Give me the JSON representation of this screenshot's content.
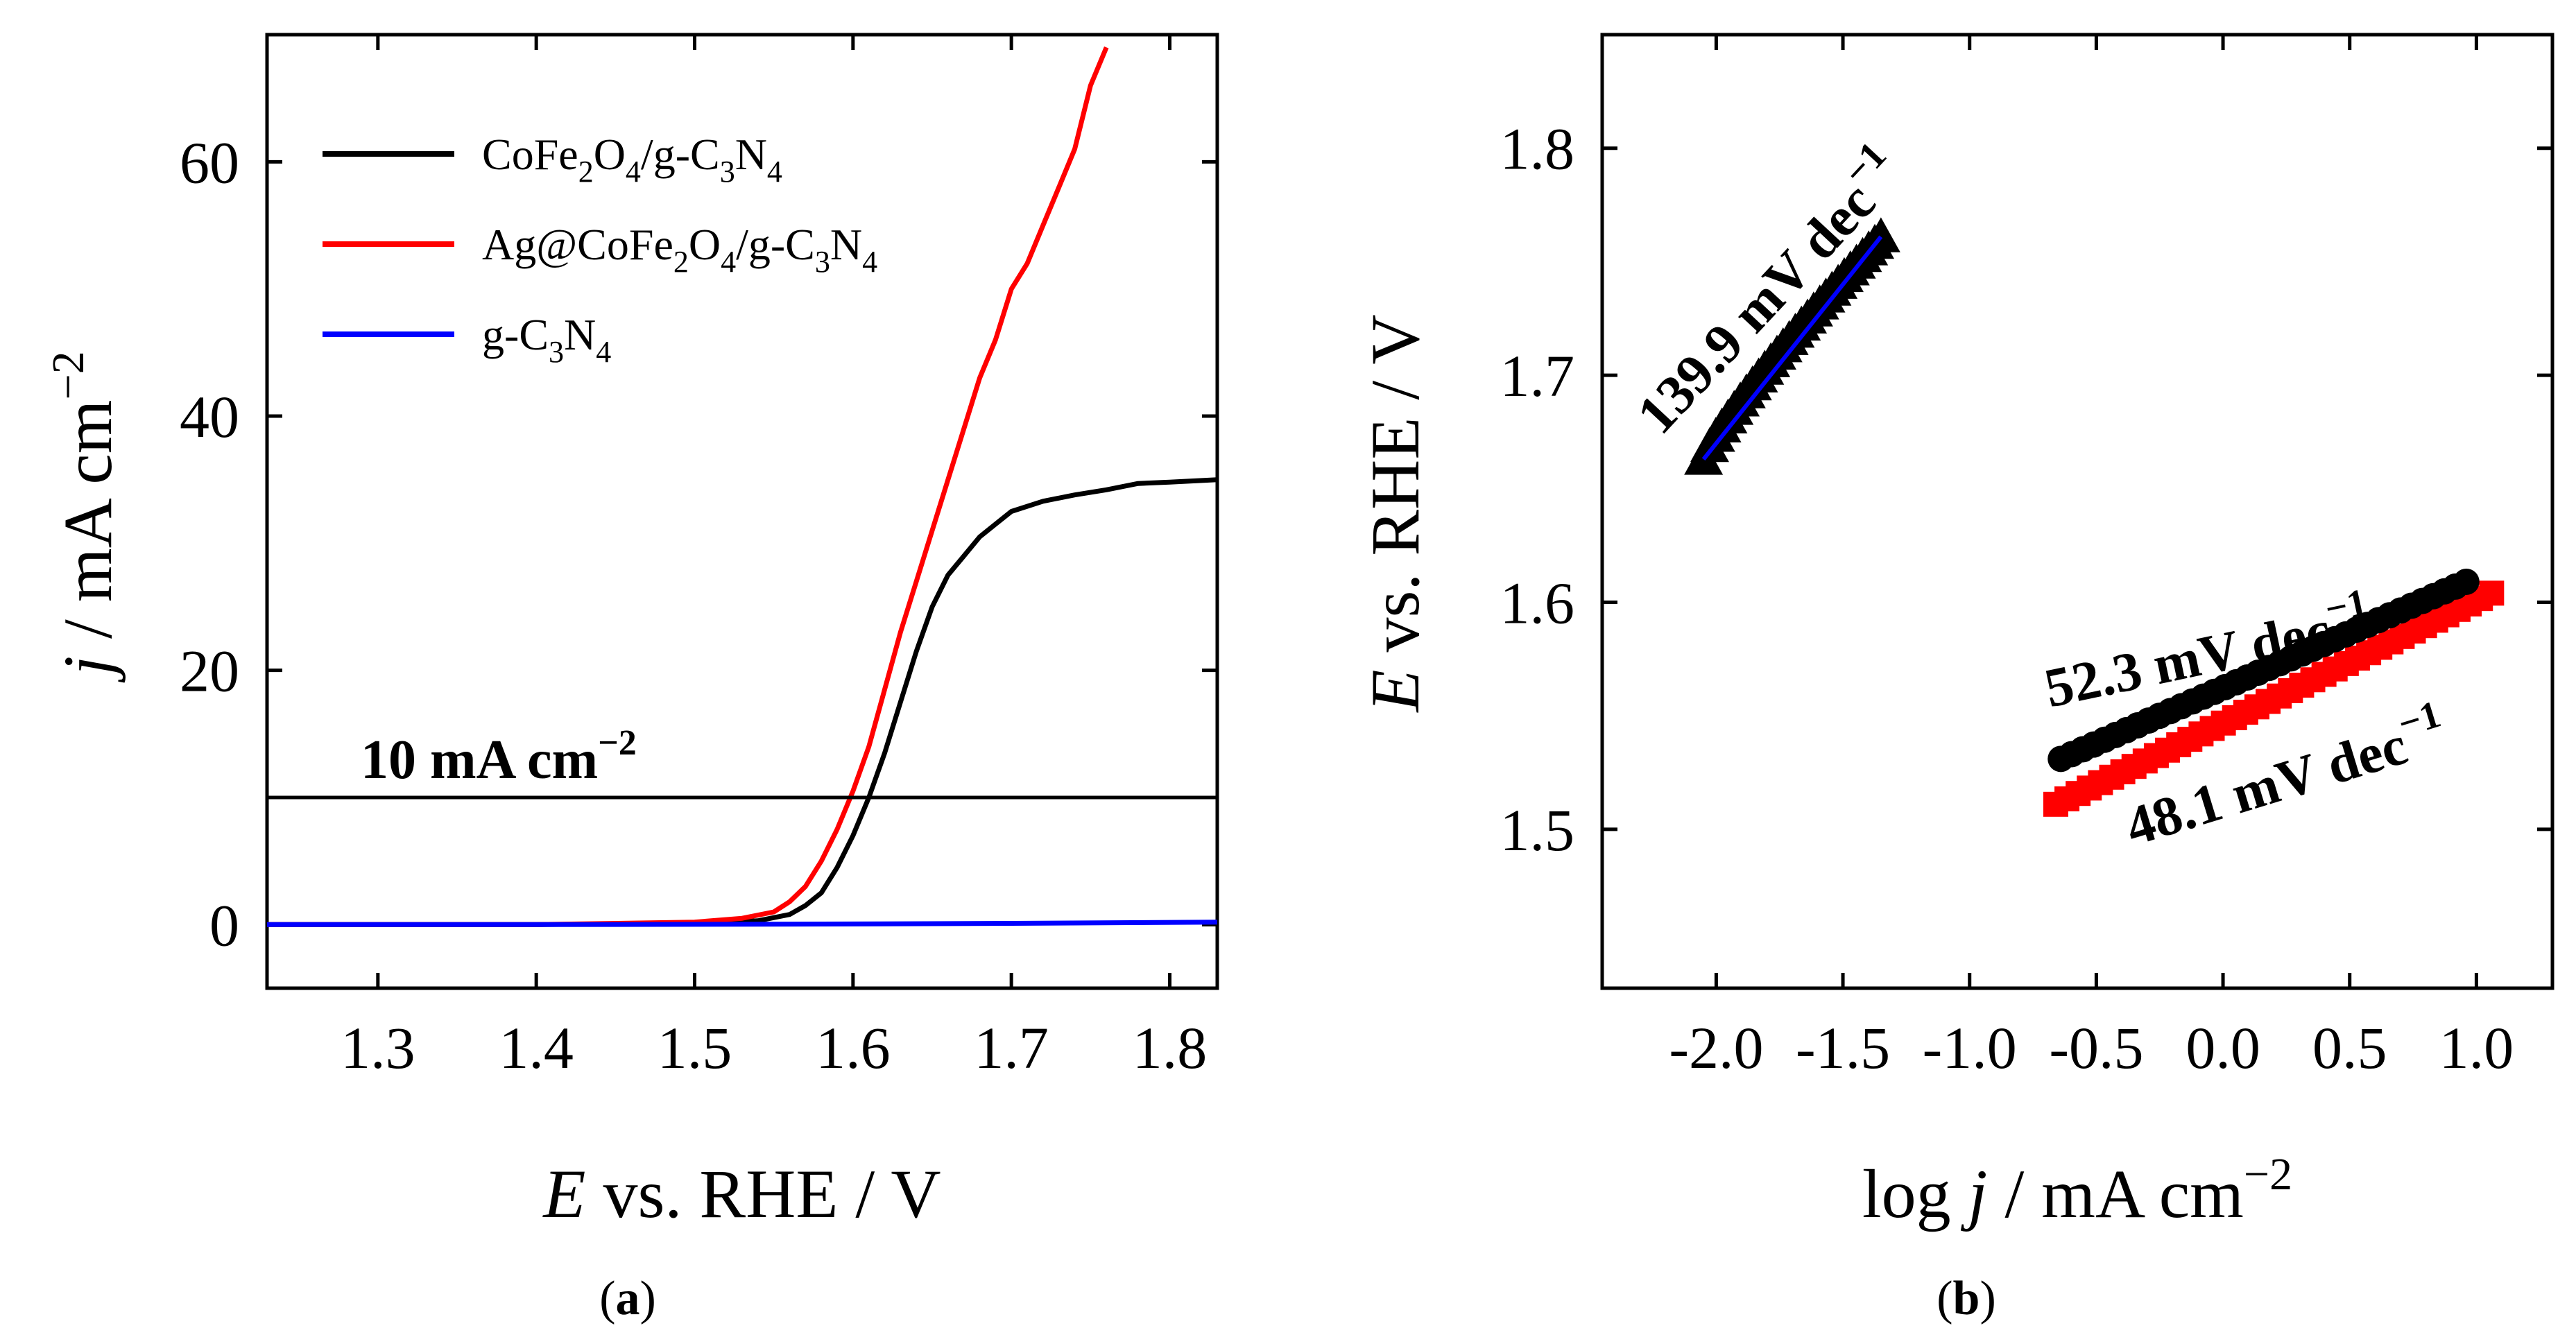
{
  "chart_data": [
    {
      "panel": "a",
      "type": "line",
      "panel_label": "a",
      "xlabel_var": "E",
      "xlabel_rest": "vs. RHE / V",
      "ylabel_var": "j",
      "ylabel_rest": "/ mA cm",
      "ylabel_sup": "−2",
      "xlim": [
        1.23,
        1.83
      ],
      "ylim": [
        -5,
        70
      ],
      "xticks": [
        "1.3",
        "1.4",
        "1.5",
        "1.6",
        "1.7",
        "1.8"
      ],
      "yticks": [
        "0",
        "20",
        "40",
        "60"
      ],
      "reference_line": {
        "y": 10,
        "label": "10 mA cm",
        "label_sup": "−2",
        "color": "#000000"
      },
      "legend_position": "top-left",
      "series": [
        {
          "name": "CoFe2O4/g-C3N4",
          "legend_parts": [
            [
              "CoFe",
              ""
            ],
            [
              "2",
              "sub"
            ],
            [
              "O",
              ""
            ],
            [
              "4",
              "sub"
            ],
            [
              "/g-C",
              ""
            ],
            [
              "3",
              "sub"
            ],
            [
              "N",
              ""
            ],
            [
              "4",
              "sub"
            ]
          ],
          "color": "#000000",
          "x": [
            1.23,
            1.3,
            1.4,
            1.5,
            1.54,
            1.56,
            1.57,
            1.58,
            1.59,
            1.6,
            1.61,
            1.62,
            1.63,
            1.64,
            1.65,
            1.66,
            1.67,
            1.68,
            1.69,
            1.7,
            1.72,
            1.74,
            1.76,
            1.78,
            1.8,
            1.83
          ],
          "y": [
            0,
            0,
            0,
            0.1,
            0.3,
            0.8,
            1.5,
            2.5,
            4.5,
            7.0,
            10.0,
            13.5,
            17.5,
            21.5,
            25.0,
            27.5,
            29.0,
            30.5,
            31.5,
            32.5,
            33.3,
            33.8,
            34.2,
            34.7,
            34.8,
            35.0
          ]
        },
        {
          "name": "Ag@CoFe2O4/g-C3N4",
          "legend_parts": [
            [
              "Ag@CoFe",
              ""
            ],
            [
              "2",
              "sub"
            ],
            [
              "O",
              ""
            ],
            [
              "4",
              "sub"
            ],
            [
              "/g-C",
              ""
            ],
            [
              "3",
              "sub"
            ],
            [
              "N",
              ""
            ],
            [
              "4",
              "sub"
            ]
          ],
          "color": "#ff0000",
          "x": [
            1.23,
            1.3,
            1.4,
            1.5,
            1.53,
            1.55,
            1.56,
            1.57,
            1.58,
            1.59,
            1.6,
            1.61,
            1.62,
            1.63,
            1.64,
            1.65,
            1.66,
            1.67,
            1.68,
            1.69,
            1.7,
            1.71,
            1.72,
            1.73,
            1.74,
            1.75,
            1.76
          ],
          "y": [
            0,
            0,
            0,
            0.2,
            0.5,
            1.0,
            1.8,
            3.0,
            5.0,
            7.5,
            10.5,
            14.0,
            18.5,
            23.0,
            27.0,
            31.0,
            35.0,
            39.0,
            43.0,
            46.0,
            50.0,
            52.0,
            55.0,
            58.0,
            61.0,
            66.0,
            69.0
          ]
        },
        {
          "name": "g-C3N4",
          "legend_parts": [
            [
              "g-C",
              ""
            ],
            [
              "3",
              "sub"
            ],
            [
              "N",
              ""
            ],
            [
              "4",
              "sub"
            ]
          ],
          "color": "#0000ff",
          "x": [
            1.23,
            1.4,
            1.6,
            1.7,
            1.83
          ],
          "y": [
            0,
            0,
            0.05,
            0.1,
            0.2
          ]
        }
      ]
    },
    {
      "panel": "b",
      "type": "scatter",
      "panel_label": "b",
      "xlabel_pre": "log ",
      "xlabel_var": "j",
      "xlabel_rest": " / mA cm",
      "xlabel_sup": "−2",
      "ylabel_var": "E",
      "ylabel_rest": "vs. RHE / V",
      "xlim": [
        -2.45,
        1.3
      ],
      "ylim": [
        1.43,
        1.85
      ],
      "xticks": [
        "-2.0",
        "-1.5",
        "-1.0",
        "-0.5",
        "0.0",
        "0.5",
        "1.0"
      ],
      "yticks": [
        "1.5",
        "1.6",
        "1.7",
        "1.8"
      ],
      "series": [
        {
          "name": "g-C3N4",
          "marker": "triangle",
          "color": "#000000",
          "fit_color": "#0000ff",
          "x_range": [
            -2.05,
            -1.35
          ],
          "y_range": [
            1.663,
            1.761
          ],
          "points": 30,
          "slope_label": "139.9 mV dec",
          "slope_sup": "−1",
          "label_color": "#0000ff"
        },
        {
          "name": "CoFe2O4/g-C3N4",
          "marker": "circle",
          "color": "#000000",
          "fit_color": "#000000",
          "x_range": [
            -0.64,
            0.96
          ],
          "y_range": [
            1.531,
            1.609
          ],
          "points": 38,
          "slope_label": "52.3 mV dec",
          "slope_sup": "−1",
          "label_color": "#000000"
        },
        {
          "name": "Ag@CoFe2O4/g-C3N4",
          "marker": "square",
          "color": "#ff0000",
          "fit_color": "#ff0000",
          "x_range": [
            -0.66,
            1.06
          ],
          "y_range": [
            1.511,
            1.604
          ],
          "points": 40,
          "slope_label": "48.1 mV dec",
          "slope_sup": "−1",
          "label_color": "#ff0000"
        }
      ]
    }
  ]
}
